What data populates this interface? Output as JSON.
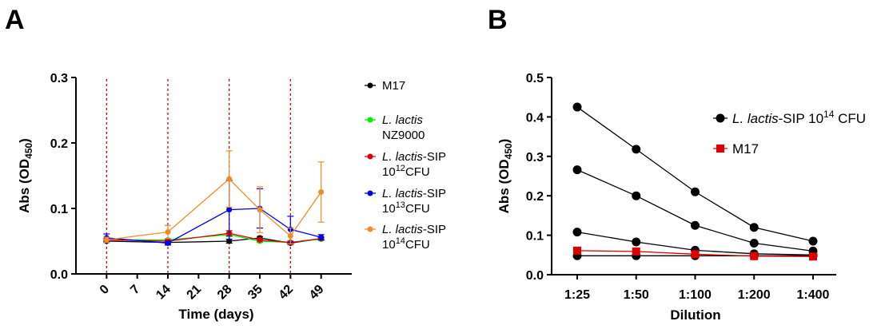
{
  "panels": {
    "a": "A",
    "b": "B"
  },
  "chart_data": [
    {
      "type": "line",
      "xlabel": "Time (days)",
      "ylabel_main": "Abs (OD",
      "ylabel_sub": "450",
      "ylabel_end": ")",
      "categories": [
        "0",
        "7",
        "14",
        "21",
        "28",
        "35",
        "42",
        "49"
      ],
      "x_values": [
        0,
        14,
        28,
        35,
        42,
        49
      ],
      "y_ticks": [
        "0.0",
        "0.1",
        "0.2",
        "0.3"
      ],
      "ylim": [
        0,
        0.3
      ],
      "vlines_days": [
        0,
        14,
        28,
        42
      ],
      "grid": false,
      "legend_placement": "right",
      "series": [
        {
          "name": "M17",
          "name_parts": {
            "italic": "",
            "plain": "M17",
            "line2": ""
          },
          "color": "#000000",
          "values": [
            0.05,
            0.048,
            0.05,
            0.055,
            0.047,
            0.054
          ],
          "err": [
            0.002,
            0.002,
            0.003,
            0.002,
            0.002,
            0.002
          ]
        },
        {
          "name": "L. lactis NZ9000",
          "name_parts": {
            "italic": "L. lactis",
            "plain": "",
            "line2": "NZ9000"
          },
          "color": "#00ee00",
          "values": [
            0.052,
            0.052,
            0.06,
            0.05,
            0.048,
            0.053
          ],
          "err": [
            0.002,
            0.002,
            0.003,
            0.002,
            0.002,
            0.002
          ]
        },
        {
          "name": "L. lactis-SIP 10^12CFU",
          "name_parts": {
            "italic": "L. lactis",
            "plain": "-SIP",
            "line2_base": "10",
            "line2_sup": "12",
            "line2_end": "CFU"
          },
          "color": "#dd0000",
          "values": [
            0.052,
            0.05,
            0.062,
            0.052,
            0.048,
            0.054
          ],
          "err": [
            0.002,
            0.002,
            0.004,
            0.002,
            0.002,
            0.002
          ]
        },
        {
          "name": "L. lactis-SIP 10^13CFU",
          "name_parts": {
            "italic": "L. lactis",
            "plain": "-SIP",
            "line2_base": "10",
            "line2_sup": "13",
            "line2_end": "CFU"
          },
          "color": "#0000ee",
          "values": [
            0.055,
            0.047,
            0.098,
            0.1,
            0.068,
            0.056
          ],
          "err": [
            0.006,
            0.003,
            0.045,
            0.03,
            0.02,
            0.004
          ]
        },
        {
          "name": "L. lactis-SIP 10^14CFU",
          "name_parts": {
            "italic": "L. lactis",
            "plain": "-SIP",
            "line2_base": "10",
            "line2_sup": "14",
            "line2_end": "CFU"
          },
          "color": "#f08c28",
          "values": [
            0.052,
            0.064,
            0.145,
            0.098,
            0.058,
            0.125
          ],
          "err": [
            0.004,
            0.01,
            0.043,
            0.035,
            0.012,
            0.046
          ]
        }
      ]
    },
    {
      "type": "line",
      "xlabel": "Dilution",
      "ylabel_main": "Abs (OD",
      "ylabel_sub": "450",
      "ylabel_end": ")",
      "categories": [
        "1:25",
        "1:50",
        "1:100",
        "1:200",
        "1:400"
      ],
      "y_ticks": [
        "0.0",
        "0.1",
        "0.2",
        "0.3",
        "0.4",
        "0.5"
      ],
      "ylim": [
        0,
        0.5
      ],
      "grid": false,
      "legend_placement": "top-right",
      "legend": [
        {
          "italic": "L. lactis",
          "plain": "-SIP 10",
          "sup": "14",
          "end": " CFU",
          "color": "#000000",
          "marker": "circle"
        },
        {
          "italic": "",
          "plain": "M17",
          "sup": "",
          "end": "",
          "color": "#e00000",
          "marker": "square"
        }
      ],
      "series": [
        {
          "group": "sip",
          "color": "#000000",
          "marker": "circle",
          "values": [
            0.425,
            0.318,
            0.21,
            0.12,
            0.085
          ]
        },
        {
          "group": "sip",
          "color": "#000000",
          "marker": "circle",
          "values": [
            0.266,
            0.2,
            0.125,
            0.08,
            0.06
          ]
        },
        {
          "group": "sip",
          "color": "#000000",
          "marker": "circle",
          "values": [
            0.108,
            0.083,
            0.062,
            0.053,
            0.05
          ]
        },
        {
          "group": "sip",
          "color": "#000000",
          "marker": "circle",
          "values": [
            0.048,
            0.048,
            0.048,
            0.048,
            0.048
          ]
        },
        {
          "group": "m17",
          "color": "#e00000",
          "marker": "square",
          "values": [
            0.061,
            0.059,
            0.052,
            0.047,
            0.046
          ]
        }
      ]
    }
  ]
}
